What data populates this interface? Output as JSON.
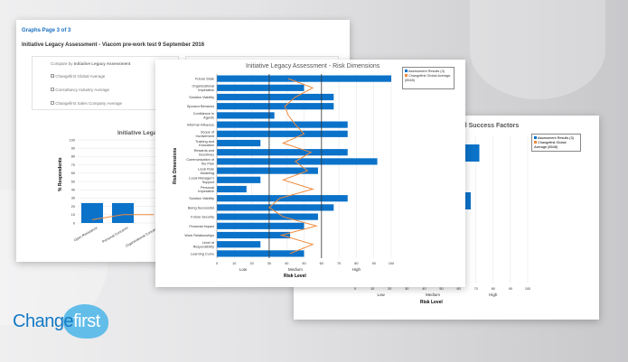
{
  "colors": {
    "accent": "#0b72c9",
    "average": "#f08a3c",
    "brand": "#1479c4",
    "brand_bubble": "#62bde9"
  },
  "brand": {
    "word1": "Change",
    "word2": "first"
  },
  "back_left": {
    "page_link": "Graphs Page 3 of 3",
    "heading": "Initiative Legacy Assessment - Viacom pre-work test 9 September 2016",
    "compare_prefix": "Compare by",
    "compare_name": "Initiative Legacy Assessment",
    "compare_other": "Compare by Other Change Type",
    "options": [
      {
        "label": "Changefirst Global Average",
        "checked": true
      },
      {
        "label": "Consultancy Industry Average",
        "checked": false
      },
      {
        "label": "Changefirst Sales Company Average",
        "checked": false
      }
    ],
    "chart_data": {
      "type": "bar",
      "title": "Initiative Legacy",
      "ylabel": "% Respondents",
      "ylim": [
        0,
        100
      ],
      "yticks": [
        0,
        10,
        20,
        30,
        40,
        50,
        60,
        70,
        80,
        90,
        100
      ],
      "categories": [
        "Open Resistance",
        "Personal Concerns",
        "Organizational Concerns"
      ],
      "series": [
        {
          "name": "Assessment Results",
          "values": [
            24,
            24,
            null
          ]
        },
        {
          "name": "Changefirst Global Average",
          "values": [
            4,
            10,
            10
          ]
        }
      ]
    }
  },
  "chart_data": {
    "type": "bar",
    "orientation": "horizontal",
    "title": "Initiative Legacy Assessment - Risk Dimensions",
    "xlabel": "Risk Level",
    "ylabel": "Risk Dimensions",
    "xlim": [
      0,
      100
    ],
    "xticks": [
      0,
      10,
      20,
      30,
      40,
      50,
      60,
      70,
      80,
      90,
      100
    ],
    "bands": [
      "Low",
      "Medium",
      "High"
    ],
    "thresholds": [
      30,
      60
    ],
    "legend": [
      "Assessment Results (3)",
      "Changefirst Global Average (8548)"
    ],
    "legend_position": "top-right",
    "categories": [
      "Future State",
      "Organizational Imperative",
      "Solution Viability",
      "Sponsor Behavior",
      "Confidence in Agents",
      "Informal Influence",
      "Scope of Involvement",
      "Training and Education",
      "Rewards and Incentives",
      "Communication of the Plan",
      "Local Role Modeling",
      "Local Manager's Support",
      "Personal Imperative",
      "Solution Viability",
      "Being Successful",
      "Future Security",
      "Financial Impact",
      "Work Relationships",
      "Level of Responsibility",
      "Learning Curve"
    ],
    "series": [
      {
        "name": "Assessment Results (3)",
        "values": [
          100,
          50,
          67,
          67,
          33,
          75,
          75,
          25,
          75,
          92,
          58,
          25,
          17,
          75,
          67,
          58,
          50,
          42,
          25,
          50
        ]
      },
      {
        "name": "Changefirst Global Average (8548)",
        "values": [
          41,
          55,
          45,
          39,
          41,
          45,
          50,
          38,
          54,
          45,
          52,
          38,
          55,
          36,
          30,
          38,
          57,
          37,
          55,
          42
        ]
      }
    ]
  },
  "back_right": {
    "chart_data": {
      "type": "bar",
      "orientation": "horizontal",
      "title": "ical Success Factors",
      "xlabel": "Risk Level",
      "xlim": [
        0,
        100
      ],
      "xticks": [
        0,
        10,
        20,
        30,
        40,
        50,
        60,
        70,
        80,
        90,
        100
      ],
      "bands": [
        "Low",
        "Medium",
        "High"
      ],
      "legend": [
        "Assessment Results (3)",
        "Changefirst Global Average (8548)"
      ],
      "series": [
        {
          "name": "Assessment Results (3)",
          "values": [
            72,
            67
          ]
        }
      ]
    }
  }
}
